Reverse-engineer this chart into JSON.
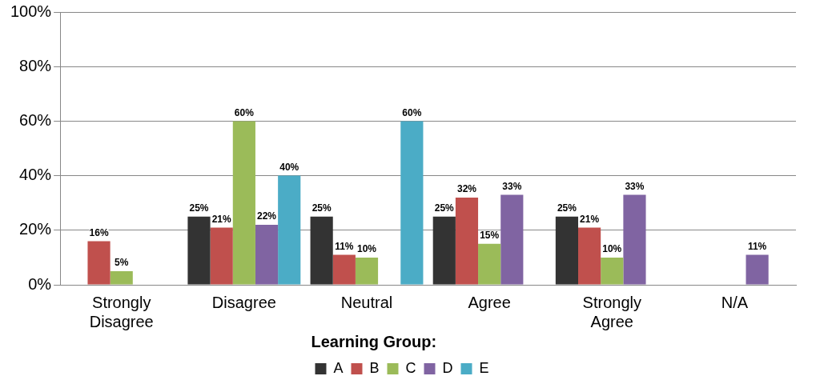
{
  "chart_data": {
    "type": "bar",
    "legend_title": "Learning Group:",
    "categories": [
      "Strongly Disagree",
      "Disagree",
      "Neutral",
      "Agree",
      "Strongly Agree",
      "N/A"
    ],
    "series": [
      {
        "name": "A",
        "color": "#333333",
        "values": [
          null,
          25,
          25,
          25,
          25,
          null
        ],
        "value_labels": [
          null,
          "25%",
          "25%",
          "25%",
          "25%",
          null
        ]
      },
      {
        "name": "B",
        "color": "#c0504d",
        "values": [
          16,
          21,
          11,
          32,
          21,
          null
        ],
        "value_labels": [
          "16%",
          "21%",
          "11%",
          "32%",
          "21%",
          null
        ]
      },
      {
        "name": "C",
        "color": "#9bbb59",
        "values": [
          5,
          60,
          10,
          15,
          10,
          null
        ],
        "value_labels": [
          "5%",
          "60%",
          "10%",
          "15%",
          "10%",
          null
        ]
      },
      {
        "name": "D",
        "color": "#8064a2",
        "values": [
          null,
          22,
          null,
          33,
          33,
          11
        ],
        "value_labels": [
          null,
          "22%",
          null,
          "33%",
          "33%",
          "11%"
        ]
      },
      {
        "name": "E",
        "color": "#4bacc6",
        "values": [
          null,
          40,
          60,
          null,
          null,
          null
        ],
        "value_labels": [
          null,
          "40%",
          "60%",
          null,
          null,
          null
        ]
      }
    ],
    "ylim": [
      0,
      100
    ],
    "yticks": [
      {
        "value": 0,
        "label": "0%"
      },
      {
        "value": 20,
        "label": "20%"
      },
      {
        "value": 40,
        "label": "40%"
      },
      {
        "value": 60,
        "label": "60%"
      },
      {
        "value": 80,
        "label": "80%"
      },
      {
        "value": 100,
        "label": "100%"
      }
    ],
    "grid": "y",
    "legend": "bottom"
  }
}
